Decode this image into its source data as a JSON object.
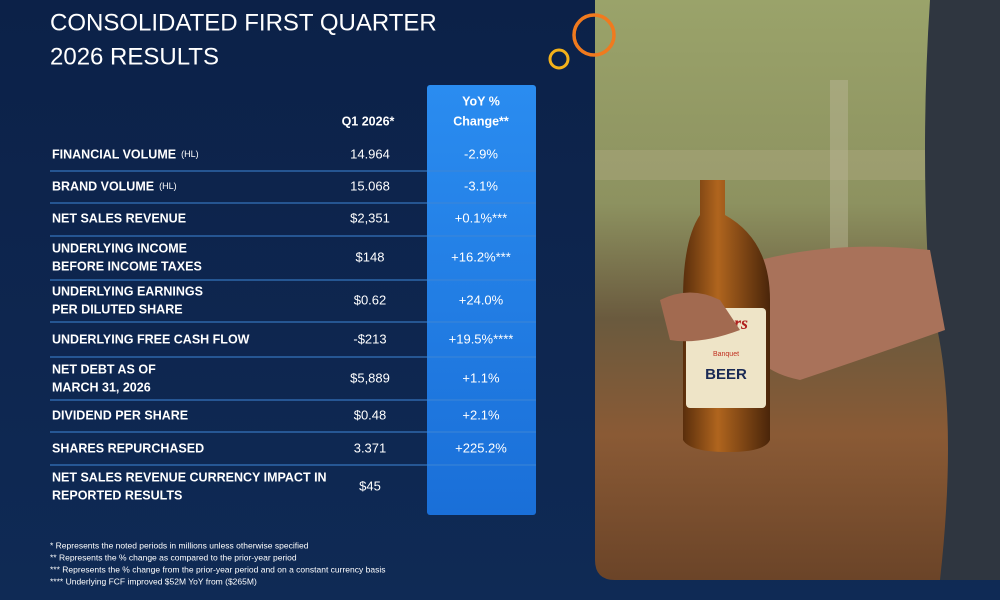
{
  "header": {
    "title": [
      "CONSOLIDATED FIRST QUARTER",
      "2026 RESULTS"
    ]
  },
  "table": {
    "columns": [
      "Q1 2026*",
      [
        "YoY %",
        "Change**"
      ]
    ],
    "rows": [
      {
        "label": [
          "FINANCIAL VOLUME"
        ],
        "unit": "(HL)",
        "q1": "14.964",
        "yoy": "-2.9%"
      },
      {
        "label": [
          "BRAND VOLUME"
        ],
        "unit": "(HL)",
        "q1": "15.068",
        "yoy": "-3.1%"
      },
      {
        "label": [
          "NET SALES REVENUE"
        ],
        "q1": "$2,351",
        "yoy": "+0.1%***"
      },
      {
        "label": [
          "UNDERLYING INCOME",
          "BEFORE INCOME TAXES"
        ],
        "q1": "$148",
        "yoy": "+16.2%***"
      },
      {
        "label": [
          "UNDERLYING EARNINGS",
          "PER DILUTED SHARE"
        ],
        "q1": "$0.62",
        "yoy": "+24.0%"
      },
      {
        "label": [
          "UNDERLYING FREE CASH FLOW"
        ],
        "q1": "-$213",
        "yoy": "+19.5%****"
      },
      {
        "label": [
          "NET DEBT AS OF",
          "MARCH 31, 2026"
        ],
        "q1": "$5,889",
        "yoy": "+1.1%"
      },
      {
        "label": [
          "DIVIDEND PER SHARE"
        ],
        "q1": "$0.48",
        "yoy": "+2.1%"
      },
      {
        "label": [
          "SHARES REPURCHASED"
        ],
        "q1": "3.371",
        "yoy": "+225.2%"
      },
      {
        "label": [
          "NET SALES REVENUE CURRENCY IMPACT IN",
          "REPORTED RESULTS"
        ],
        "q1": "$45"
      }
    ]
  },
  "footnotes": [
    "* Represents the noted periods in millions unless otherwise specified",
    "** Represents the % change as compared to the prior-year period",
    "*** Represents the % change from the prior-year period and on a constant currency basis",
    "**** Underlying FCF improved $52M YoY from ($265M)"
  ],
  "photo": {
    "label": [
      "Coors",
      "Banquet",
      "BEER"
    ]
  }
}
